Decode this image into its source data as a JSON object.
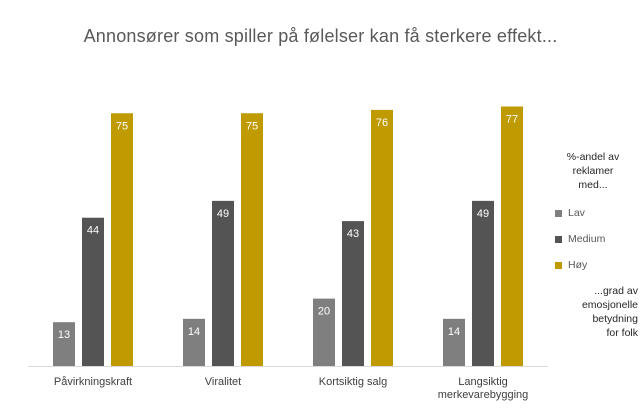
{
  "chart_data": {
    "type": "bar",
    "title": "Annonsører som spiller på følelser kan få sterkere effekt...",
    "categories": [
      "Påvirkningskraft",
      "Viralitet",
      "Kortsiktig salg",
      [
        "Langsiktig",
        "merkevarebygging"
      ]
    ],
    "series": [
      {
        "name": "Lav",
        "color": "#7f7f7f",
        "values": [
          13,
          14,
          20,
          14
        ]
      },
      {
        "name": "Medium",
        "color": "#545454",
        "values": [
          44,
          49,
          43,
          49
        ]
      },
      {
        "name": "Høy",
        "color": "#bf9a00",
        "values": [
          75,
          75,
          76,
          77
        ]
      }
    ],
    "ylim": [
      0,
      100
    ],
    "grid": false,
    "legend": {
      "placement": "right",
      "heading": [
        "%-andel av",
        "reklamer",
        "med..."
      ],
      "footer": [
        "...grad av",
        "emosjonelle",
        "betydning",
        "for folk"
      ]
    }
  }
}
